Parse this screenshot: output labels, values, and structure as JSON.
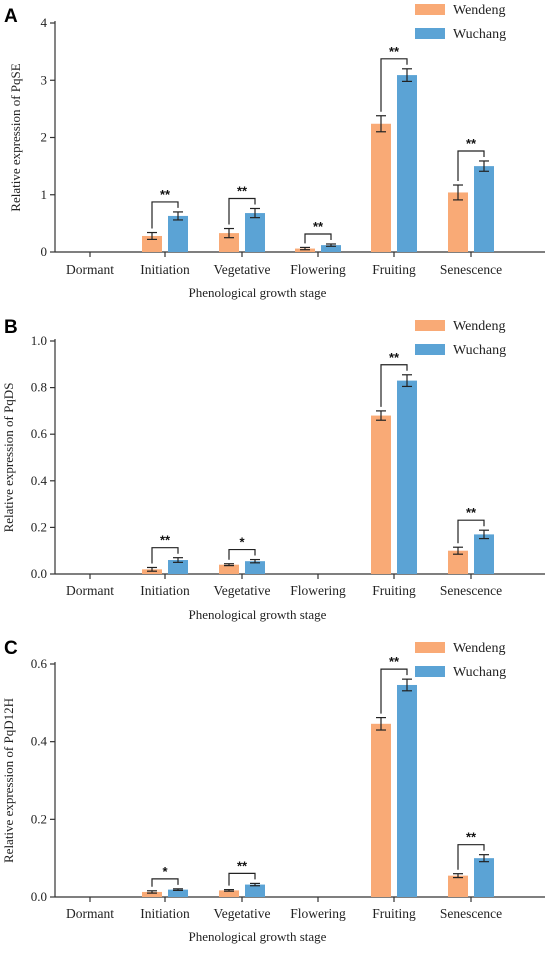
{
  "colors": {
    "wendeng": "#F9AA76",
    "wuchang": "#5BA3D5",
    "axis": "#333333"
  },
  "chart_data": [
    {
      "panel": "A",
      "type": "bar",
      "categories": [
        "Dormant",
        "Initiation",
        "Vegetative",
        "Flowering",
        "Fruiting",
        "Senescence"
      ],
      "xlabel": "Phenological growth stage",
      "ylabel": "Relative expression of PqSE",
      "ylim": [
        0,
        4
      ],
      "yticks": [
        "0",
        "1",
        "2",
        "3",
        "4"
      ],
      "yticks_values": [
        0,
        1,
        2,
        3,
        4
      ],
      "legend_position": "top-right",
      "series": [
        {
          "name": "Wendeng",
          "values": [
            0,
            0.28,
            0.33,
            0.06,
            2.24,
            1.04
          ],
          "errors": [
            0,
            0.06,
            0.08,
            0.02,
            0.14,
            0.13
          ]
        },
        {
          "name": "Wuchang",
          "values": [
            0,
            0.63,
            0.68,
            0.12,
            3.09,
            1.5
          ],
          "errors": [
            0,
            0.07,
            0.08,
            0.02,
            0.11,
            0.09
          ]
        }
      ],
      "significance": [
        "",
        "**",
        "**",
        "**",
        "**",
        "**"
      ]
    },
    {
      "panel": "B",
      "type": "bar",
      "categories": [
        "Dormant",
        "Initiation",
        "Vegetative",
        "Flowering",
        "Fruiting",
        "Senescence"
      ],
      "xlabel": "Phenological growth stage",
      "ylabel": "Relative expression of PqDS",
      "ylim": [
        0,
        1.0
      ],
      "yticks": [
        "0.0",
        "0.2",
        "0.4",
        "0.6",
        "0.8",
        "1.0"
      ],
      "yticks_values": [
        0,
        0.2,
        0.4,
        0.6,
        0.8,
        1.0
      ],
      "legend_position": "top-right",
      "series": [
        {
          "name": "Wendeng",
          "values": [
            0,
            0.02,
            0.04,
            0,
            0.68,
            0.1
          ],
          "errors": [
            0,
            0.008,
            0.004,
            0,
            0.02,
            0.015
          ]
        },
        {
          "name": "Wuchang",
          "values": [
            0,
            0.06,
            0.055,
            0,
            0.83,
            0.17
          ],
          "errors": [
            0,
            0.01,
            0.007,
            0,
            0.025,
            0.018
          ]
        }
      ],
      "significance": [
        "",
        "**",
        "*",
        "",
        "**",
        "**"
      ]
    },
    {
      "panel": "C",
      "type": "bar",
      "categories": [
        "Dormant",
        "Initiation",
        "Vegetative",
        "Flowering",
        "Fruiting",
        "Senescence"
      ],
      "xlabel": "Phenological growth stage",
      "ylabel": "Relative expression of PqD12H",
      "ylim": [
        0,
        0.6
      ],
      "yticks": [
        "0.0",
        "0.2",
        "0.4",
        "0.6"
      ],
      "yticks_values": [
        0,
        0.2,
        0.4,
        0.6
      ],
      "legend_position": "top-right",
      "series": [
        {
          "name": "Wendeng",
          "values": [
            0,
            0.013,
            0.017,
            0,
            0.446,
            0.055
          ],
          "errors": [
            0,
            0.003,
            0.002,
            0,
            0.016,
            0.005
          ]
        },
        {
          "name": "Wuchang",
          "values": [
            0,
            0.019,
            0.032,
            0,
            0.546,
            0.1
          ],
          "errors": [
            0,
            0.002,
            0.003,
            0,
            0.015,
            0.009
          ]
        }
      ],
      "significance": [
        "",
        "*",
        "**",
        "",
        "**",
        "**"
      ]
    }
  ]
}
